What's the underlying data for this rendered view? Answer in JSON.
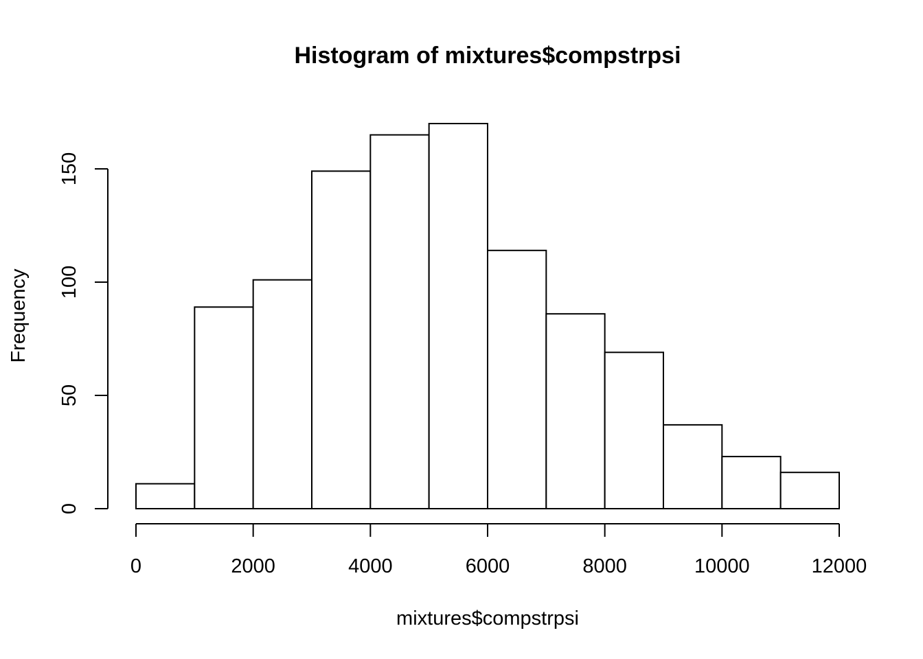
{
  "chart_data": {
    "type": "bar",
    "subtype": "histogram",
    "title": "Histogram of mixtures$compstrpsi",
    "xlabel": "mixtures$compstrpsi",
    "ylabel": "Frequency",
    "bins": [
      {
        "start": 0,
        "end": 1000,
        "count": 11
      },
      {
        "start": 1000,
        "end": 2000,
        "count": 89
      },
      {
        "start": 2000,
        "end": 3000,
        "count": 101
      },
      {
        "start": 3000,
        "end": 4000,
        "count": 149
      },
      {
        "start": 4000,
        "end": 5000,
        "count": 165
      },
      {
        "start": 5000,
        "end": 6000,
        "count": 170
      },
      {
        "start": 6000,
        "end": 7000,
        "count": 114
      },
      {
        "start": 7000,
        "end": 8000,
        "count": 86
      },
      {
        "start": 8000,
        "end": 9000,
        "count": 69
      },
      {
        "start": 9000,
        "end": 10000,
        "count": 37
      },
      {
        "start": 10000,
        "end": 11000,
        "count": 23
      },
      {
        "start": 11000,
        "end": 12000,
        "count": 16
      }
    ],
    "xlim": [
      0,
      12000
    ],
    "ylim": [
      0,
      170
    ],
    "x_ticks": [
      0,
      2000,
      4000,
      6000,
      8000,
      10000,
      12000
    ],
    "y_ticks": [
      0,
      50,
      100,
      150
    ],
    "x_tick_labels": [
      "0",
      "2000",
      "4000",
      "6000",
      "8000",
      "10000",
      "12000"
    ],
    "y_tick_labels": [
      "0",
      "50",
      "100",
      "150"
    ],
    "grid": false,
    "bar_fill": "#ffffff",
    "bar_stroke": "#000000"
  }
}
